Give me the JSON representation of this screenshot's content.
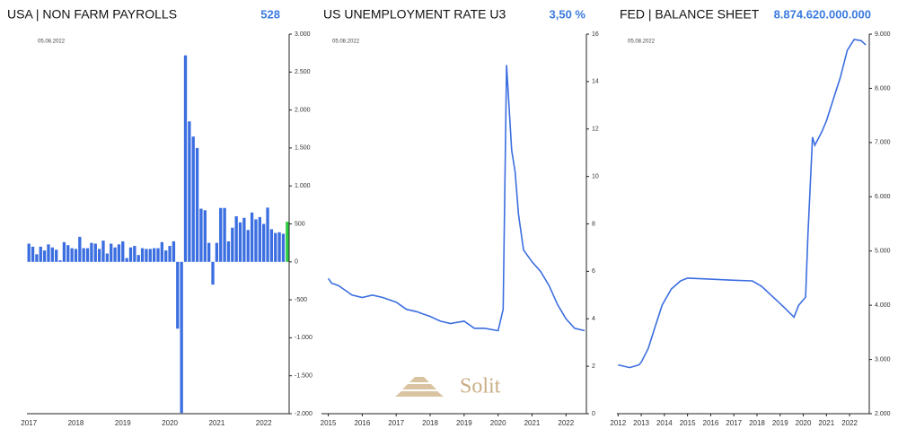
{
  "chart_data": [
    {
      "type": "bar",
      "title": "USA | NON FARM PAYROLLS",
      "headline": "528",
      "date": "05.08.2022",
      "categories": [
        "2017",
        null,
        null,
        null,
        null,
        null,
        null,
        null,
        null,
        null,
        null,
        null,
        "2018",
        null,
        null,
        null,
        null,
        null,
        null,
        null,
        null,
        null,
        null,
        null,
        "2019",
        null,
        null,
        null,
        null,
        null,
        null,
        null,
        null,
        null,
        null,
        null,
        "2020",
        null,
        null,
        null,
        null,
        null,
        null,
        null,
        null,
        null,
        null,
        null,
        "2021",
        null,
        null,
        null,
        null,
        null,
        null,
        null,
        null,
        null,
        null,
        null,
        "2022",
        null,
        null,
        null,
        null,
        null,
        null
      ],
      "values": [
        240,
        200,
        100,
        200,
        150,
        230,
        190,
        160,
        20,
        260,
        220,
        180,
        170,
        330,
        180,
        180,
        250,
        240,
        170,
        280,
        110,
        240,
        190,
        230,
        270,
        50,
        190,
        210,
        90,
        180,
        170,
        170,
        180,
        180,
        260,
        150,
        210,
        270,
        -880,
        -1990,
        2720,
        1850,
        1650,
        1500,
        700,
        680,
        250,
        -300,
        250,
        710,
        710,
        270,
        450,
        600,
        520,
        580,
        420,
        650,
        560,
        590,
        500,
        714,
        430,
        380,
        390,
        370,
        528
      ],
      "colors": [
        "#3b6ee0",
        "#3b6ee0",
        "#3b6ee0",
        "#3b6ee0",
        "#3b6ee0",
        "#3b6ee0",
        "#3b6ee0",
        "#3b6ee0",
        "#3b6ee0",
        "#3b6ee0",
        "#3b6ee0",
        "#3b6ee0",
        "#3b6ee0",
        "#3b6ee0",
        "#3b6ee0",
        "#3b6ee0",
        "#3b6ee0",
        "#3b6ee0",
        "#3b6ee0",
        "#3b6ee0",
        "#3b6ee0",
        "#3b6ee0",
        "#3b6ee0",
        "#3b6ee0",
        "#3b6ee0",
        "#3b6ee0",
        "#3b6ee0",
        "#3b6ee0",
        "#3b6ee0",
        "#3b6ee0",
        "#3b6ee0",
        "#3b6ee0",
        "#3b6ee0",
        "#3b6ee0",
        "#3b6ee0",
        "#3b6ee0",
        "#3b6ee0",
        "#3b6ee0",
        "#3b6ee0",
        "#3b6ee0",
        "#3b6ee0",
        "#3b6ee0",
        "#3b6ee0",
        "#3b6ee0",
        "#3b6ee0",
        "#3b6ee0",
        "#3b6ee0",
        "#3b6ee0",
        "#3b6ee0",
        "#3b6ee0",
        "#3b6ee0",
        "#3b6ee0",
        "#3b6ee0",
        "#3b6ee0",
        "#3b6ee0",
        "#3b6ee0",
        "#3b6ee0",
        "#3b6ee0",
        "#3b6ee0",
        "#3b6ee0",
        "#3b6ee0",
        "#3b6ee0",
        "#3b6ee0",
        "#3b6ee0",
        "#3b6ee0",
        "#3b6ee0",
        "#2ecc40"
      ],
      "ylim": [
        -2000,
        3000
      ],
      "yticks": [
        {
          "value": -2000,
          "label": "-2.000"
        },
        {
          "value": -1500,
          "label": "-1.500"
        },
        {
          "value": -1000,
          "label": "-1.000"
        },
        -500,
        0,
        500,
        {
          "value": 1000,
          "label": "1.000"
        },
        {
          "value": 1500,
          "label": "1.500"
        },
        {
          "value": 2000,
          "label": "2.000"
        },
        {
          "value": 2500,
          "label": "2.500"
        },
        {
          "value": 3000,
          "label": "3.000"
        }
      ]
    },
    {
      "type": "line",
      "title": "US UNEMPLOYMENT RATE U3",
      "headline": "3,50 %",
      "date": "05.08.2022",
      "color": "#3b6ee0",
      "x": [
        2015.0,
        2015.1,
        2015.3,
        2015.5,
        2015.7,
        2016.0,
        2016.3,
        2016.6,
        2017.0,
        2017.3,
        2017.6,
        2018.0,
        2018.3,
        2018.6,
        2019.0,
        2019.3,
        2019.6,
        2020.0,
        2020.15,
        2020.25,
        2020.4,
        2020.5,
        2020.6,
        2020.75,
        2021.0,
        2021.25,
        2021.5,
        2021.75,
        2022.0,
        2022.25,
        2022.55
      ],
      "values": [
        5.7,
        5.5,
        5.4,
        5.2,
        5.0,
        4.9,
        5.0,
        4.9,
        4.7,
        4.4,
        4.3,
        4.1,
        3.9,
        3.8,
        3.9,
        3.6,
        3.6,
        3.5,
        4.4,
        14.7,
        11.1,
        10.2,
        8.4,
        6.9,
        6.4,
        6.0,
        5.4,
        4.6,
        4.0,
        3.6,
        3.5
      ],
      "xlim": [
        2014.8,
        2022.6
      ],
      "xticks": [
        2015,
        2016,
        2017,
        2018,
        2019,
        2020,
        2021,
        2022
      ],
      "ylim": [
        0,
        16
      ],
      "yticks": [
        0,
        2,
        4,
        6,
        8,
        10,
        12,
        14,
        16
      ]
    },
    {
      "type": "line",
      "title": "FED | BALANCE SHEET",
      "headline": "8.874.620.000.000",
      "date": "05.08.2022",
      "color": "#3b6ee0",
      "x": [
        2012.0,
        2012.5,
        2012.9,
        2013.0,
        2013.3,
        2013.6,
        2013.9,
        2014.3,
        2014.7,
        2015.0,
        2016.0,
        2017.0,
        2017.8,
        2018.2,
        2018.7,
        2019.2,
        2019.6,
        2019.8,
        2020.1,
        2020.2,
        2020.4,
        2020.5,
        2020.8,
        2021.0,
        2021.3,
        2021.6,
        2021.9,
        2022.2,
        2022.5,
        2022.7
      ],
      "values": [
        2900,
        2850,
        2900,
        2950,
        3200,
        3600,
        4000,
        4300,
        4450,
        4500,
        4480,
        4460,
        4450,
        4350,
        4150,
        3950,
        3780,
        4000,
        4150,
        5300,
        7100,
        6950,
        7200,
        7400,
        7800,
        8200,
        8700,
        8900,
        8880,
        8800
      ],
      "xlim": [
        2011.95,
        2022.85
      ],
      "xticks": [
        2012,
        2013,
        2014,
        2015,
        2016,
        2017,
        2018,
        2019,
        2020,
        2021,
        2022
      ],
      "ylim": [
        2000,
        9000
      ],
      "yticks": [
        {
          "value": 2000,
          "label": "2.000"
        },
        {
          "value": 3000,
          "label": "3.000"
        },
        {
          "value": 4000,
          "label": "4.000"
        },
        {
          "value": 5000,
          "label": "5.000"
        },
        {
          "value": 6000,
          "label": "6.000"
        },
        {
          "value": 7000,
          "label": "7.000"
        },
        {
          "value": 8000,
          "label": "8.000"
        },
        {
          "value": 9000,
          "label": "9.000"
        }
      ]
    }
  ],
  "watermark": "Solit"
}
